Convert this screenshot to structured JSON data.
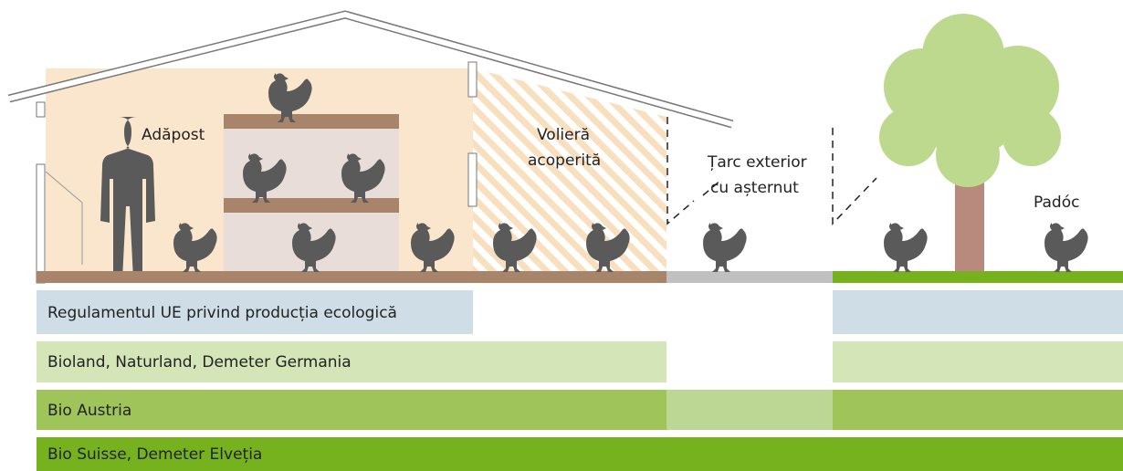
{
  "zones": [
    {
      "lines": [
        "Adăpost"
      ]
    },
    {
      "lines": [
        "Volieră",
        "acoperită"
      ]
    },
    {
      "lines": [
        "Țarc exterior",
        "cu așternut"
      ]
    },
    {
      "lines": [
        "Padóc"
      ]
    }
  ],
  "standards": [
    "Regulamentul UE privind producția ecologică",
    "Bioland, Naturland, Demeter Germania",
    "Bio Austria",
    "Bio Suisse, Demeter Elveția"
  ]
}
